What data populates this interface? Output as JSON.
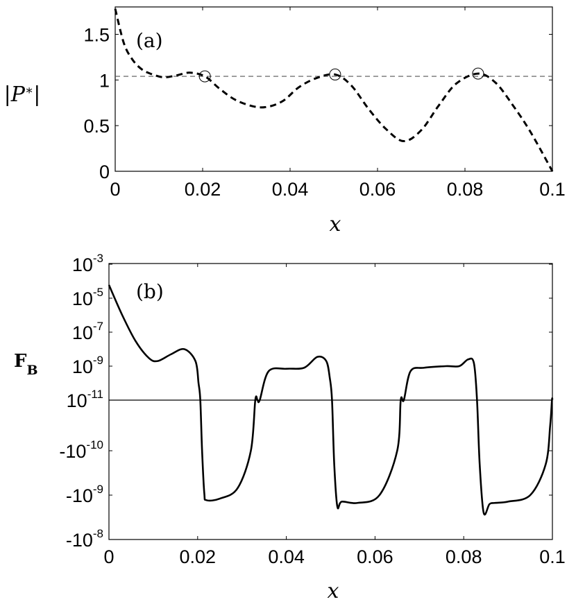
{
  "chart_data": [
    {
      "type": "line",
      "panel_label": "(a)",
      "xlabel": "x",
      "ylabel": "|P*|",
      "xlim": [
        0,
        0.1
      ],
      "ylim": [
        0,
        1.8
      ],
      "xticks": [
        0,
        0.02,
        0.04,
        0.06,
        0.08,
        0.1
      ],
      "xtick_labels": [
        "0",
        "0.02",
        "0.04",
        "0.06",
        "0.08",
        "0.1"
      ],
      "yticks": [
        0,
        0.5,
        1,
        1.5
      ],
      "ytick_labels": [
        "0",
        "0.5",
        "1",
        "1.5"
      ],
      "reference_line": {
        "y": 1.04,
        "style": "dashed"
      },
      "markers": [
        {
          "x": 0.0205,
          "y": 1.04
        },
        {
          "x": 0.0503,
          "y": 1.06
        },
        {
          "x": 0.083,
          "y": 1.07
        }
      ],
      "series": [
        {
          "style": "dashed",
          "x": [
            0,
            0.002,
            0.004,
            0.006,
            0.008,
            0.011,
            0.014,
            0.017,
            0.0205,
            0.024,
            0.028,
            0.0333,
            0.038,
            0.042,
            0.046,
            0.0503,
            0.054,
            0.058,
            0.062,
            0.066,
            0.07,
            0.074,
            0.078,
            0.083,
            0.087,
            0.091,
            0.095,
            0.1
          ],
          "y": [
            1.78,
            1.4,
            1.22,
            1.12,
            1.07,
            1.03,
            1.05,
            1.08,
            1.04,
            0.9,
            0.77,
            0.7,
            0.76,
            0.92,
            1.02,
            1.06,
            0.94,
            0.68,
            0.46,
            0.33,
            0.45,
            0.72,
            0.96,
            1.07,
            0.97,
            0.72,
            0.43,
            0.0
          ]
        }
      ]
    },
    {
      "type": "line",
      "panel_label": "(b)",
      "xlabel": "x",
      "ylabel": "F_B",
      "xlim": [
        0,
        0.1
      ],
      "xticks": [
        0,
        0.02,
        0.04,
        0.06,
        0.08,
        0.1
      ],
      "xtick_labels": [
        "0",
        "0.02",
        "0.04",
        "0.06",
        "0.08",
        "0.1"
      ],
      "yscale": "symmetric-log",
      "yticks": [
        {
          "base": "10",
          "exp": "-3",
          "v": 0.001
        },
        {
          "base": "10",
          "exp": "-5",
          "v": 1e-05
        },
        {
          "base": "10",
          "exp": "-7",
          "v": 1e-07
        },
        {
          "base": "10",
          "exp": "-9",
          "v": 1e-09
        },
        {
          "base": "10",
          "exp": "-11",
          "v": 1e-11
        },
        {
          "base": "-10",
          "exp": "-10",
          "v": -1e-10
        },
        {
          "base": "-10",
          "exp": "-9",
          "v": -1e-09
        },
        {
          "base": "-10",
          "exp": "-8",
          "v": -1e-08
        }
      ],
      "zero_line": true,
      "series": [
        {
          "style": "solid",
          "x": [
            0,
            0.003,
            0.006,
            0.009,
            0.011,
            0.014,
            0.017,
            0.0195,
            0.0202,
            0.0206,
            0.021,
            0.0215,
            0.022,
            0.025,
            0.029,
            0.032,
            0.033,
            0.0335,
            0.034,
            0.036,
            0.04,
            0.044,
            0.047,
            0.049,
            0.0498,
            0.0503,
            0.0508,
            0.0515,
            0.0525,
            0.056,
            0.061,
            0.065,
            0.0658,
            0.0665,
            0.068,
            0.071,
            0.076,
            0.079,
            0.081,
            0.0823,
            0.083,
            0.0836,
            0.0845,
            0.0858,
            0.087,
            0.09,
            0.095,
            0.0985,
            0.0995,
            0.0999,
            0.1
          ],
          "y": [
            6e-05,
            1e-06,
            3e-08,
            3e-09,
            2e-09,
            5e-09,
            1e-08,
            2e-09,
            1e-10,
            1e-12,
            -1e-10,
            -9e-10,
            -1.3e-09,
            -1.2e-09,
            -7e-10,
            -1e-10,
            0,
            1e-12,
            1e-11,
            5e-10,
            7e-10,
            8e-10,
            3.5e-09,
            2e-09,
            2e-10,
            0,
            -2e-10,
            -1.8e-09,
            -1.4e-09,
            -1.5e-09,
            -1e-09,
            -1e-10,
            0,
            1e-11,
            5e-10,
            8e-10,
            1e-09,
            1e-09,
            2.5e-09,
            1.5e-09,
            0,
            -2e-10,
            -2.5e-09,
            -1.6e-09,
            -1.5e-09,
            -1.4e-09,
            -1e-09,
            -2e-10,
            -5e-11,
            0,
            1e-12
          ]
        }
      ]
    }
  ]
}
